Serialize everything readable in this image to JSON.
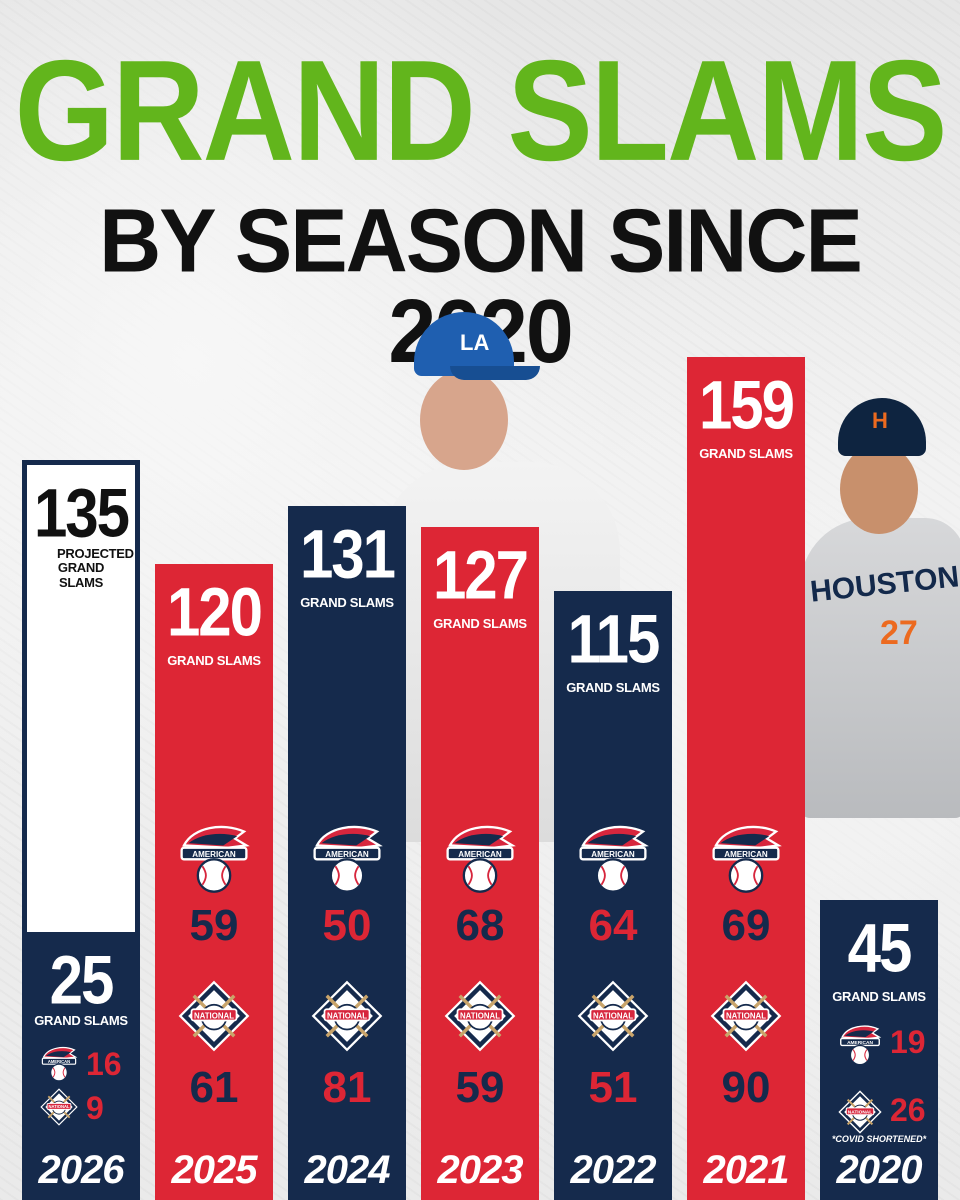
{
  "title": "GRAND SLAMS",
  "subtitle": "BY SEASON SINCE 2020",
  "colors": {
    "green": "#62b51c",
    "navy": "#152a4c",
    "red": "#dd2635",
    "white": "#ffffff"
  },
  "icons": {
    "american": "american-league-logo",
    "national": "national-league-logo"
  },
  "chart_data": {
    "type": "bar",
    "title": "GRAND SLAMS BY SEASON SINCE 2020",
    "categories": [
      "2026",
      "2025",
      "2024",
      "2023",
      "2022",
      "2021",
      "2020"
    ],
    "totals": [
      135,
      120,
      131,
      127,
      115,
      159,
      45
    ],
    "series": [
      {
        "name": "AMERICAN",
        "values": [
          16,
          59,
          50,
          68,
          64,
          69,
          19
        ]
      },
      {
        "name": "NATIONAL",
        "values": [
          9,
          61,
          81,
          59,
          51,
          90,
          26
        ]
      }
    ],
    "bars": [
      {
        "year": "2026",
        "total": "135",
        "label": "PROJECTED GRAND SLAMS",
        "projected": true,
        "actual_total": "25",
        "actual_label": "GRAND SLAMS",
        "al": "16",
        "nl": "9",
        "color": "white"
      },
      {
        "year": "2025",
        "total": "120",
        "label": "GRAND SLAMS",
        "al": "59",
        "nl": "61",
        "color": "red"
      },
      {
        "year": "2024",
        "total": "131",
        "label": "GRAND SLAMS",
        "al": "50",
        "nl": "81",
        "color": "navy"
      },
      {
        "year": "2023",
        "total": "127",
        "label": "GRAND SLAMS",
        "al": "68",
        "nl": "59",
        "color": "red"
      },
      {
        "year": "2022",
        "total": "115",
        "label": "GRAND SLAMS",
        "al": "64",
        "nl": "51",
        "color": "navy"
      },
      {
        "year": "2021",
        "total": "159",
        "label": "GRAND SLAMS",
        "al": "69",
        "nl": "90",
        "color": "red"
      },
      {
        "year": "2020",
        "total": "45",
        "label": "GRAND SLAMS",
        "al": "19",
        "nl": "26",
        "color": "navy",
        "note": "*COVID SHORTENED*"
      }
    ]
  }
}
